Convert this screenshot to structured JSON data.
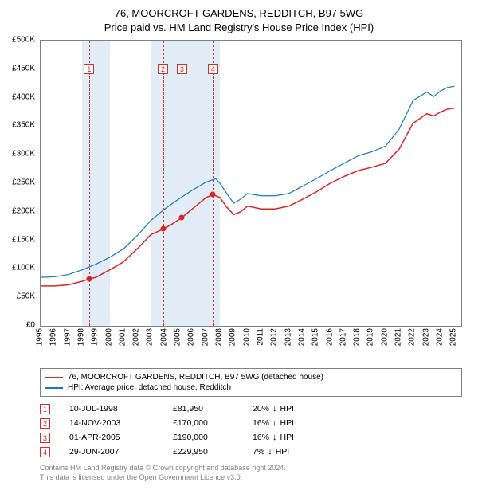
{
  "title_line1": "76, MOORCROFT GARDENS, REDDITCH, B97 5WG",
  "title_line2": "Price paid vs. HM Land Registry's House Price Index (HPI)",
  "chart": {
    "type": "line",
    "background_color": "#ffffff",
    "shade_color": "#e2ecf6",
    "vline_color": "#d03030",
    "border_color": "#808080",
    "x_year_min": 1995,
    "x_year_max": 2025.5,
    "y_min": 0,
    "y_max": 500000,
    "y_ticks": [
      0,
      50000,
      100000,
      150000,
      200000,
      250000,
      300000,
      350000,
      400000,
      450000,
      500000
    ],
    "y_tick_labels": [
      "£0",
      "£50K",
      "£100K",
      "£150K",
      "£200K",
      "£250K",
      "£300K",
      "£350K",
      "£400K",
      "£450K",
      "£500K"
    ],
    "x_ticks": [
      1995,
      1996,
      1997,
      1998,
      1999,
      2000,
      2001,
      2002,
      2003,
      2004,
      2005,
      2006,
      2007,
      2008,
      2009,
      2010,
      2011,
      2012,
      2013,
      2014,
      2015,
      2016,
      2017,
      2018,
      2019,
      2020,
      2021,
      2022,
      2023,
      2024,
      2025
    ],
    "shaded_years": [
      1998,
      1999,
      2003,
      2004,
      2005,
      2006,
      2007
    ],
    "label_fontsize": 10,
    "series": [
      {
        "name": "subject",
        "label": "76, MOORCROFT GARDENS, REDDITCH, B97 5WG (detached house)",
        "color": "#d62728",
        "width": 1.5,
        "points": [
          [
            1995.0,
            70000
          ],
          [
            1996.0,
            70000
          ],
          [
            1997.0,
            72000
          ],
          [
            1998.0,
            78000
          ],
          [
            1998.5,
            81950
          ],
          [
            1999.0,
            85000
          ],
          [
            2000.0,
            98000
          ],
          [
            2001.0,
            112000
          ],
          [
            2002.0,
            135000
          ],
          [
            2003.0,
            160000
          ],
          [
            2003.9,
            170000
          ],
          [
            2004.5,
            178000
          ],
          [
            2005.25,
            190000
          ],
          [
            2006.0,
            205000
          ],
          [
            2007.0,
            225000
          ],
          [
            2007.5,
            229950
          ],
          [
            2008.0,
            225000
          ],
          [
            2008.5,
            208000
          ],
          [
            2009.0,
            195000
          ],
          [
            2009.5,
            200000
          ],
          [
            2010.0,
            210000
          ],
          [
            2011.0,
            205000
          ],
          [
            2012.0,
            205000
          ],
          [
            2013.0,
            210000
          ],
          [
            2014.0,
            222000
          ],
          [
            2015.0,
            235000
          ],
          [
            2016.0,
            250000
          ],
          [
            2017.0,
            262000
          ],
          [
            2018.0,
            272000
          ],
          [
            2019.0,
            278000
          ],
          [
            2020.0,
            285000
          ],
          [
            2021.0,
            310000
          ],
          [
            2022.0,
            355000
          ],
          [
            2023.0,
            372000
          ],
          [
            2023.5,
            368000
          ],
          [
            2024.0,
            375000
          ],
          [
            2024.5,
            380000
          ],
          [
            2025.0,
            382000
          ]
        ]
      },
      {
        "name": "hpi",
        "label": "HPI: Average price, detached house, Redditch",
        "color": "#1f77b4",
        "width": 1.2,
        "points": [
          [
            1995.0,
            85000
          ],
          [
            1996.0,
            86000
          ],
          [
            1997.0,
            90000
          ],
          [
            1998.0,
            98000
          ],
          [
            1999.0,
            108000
          ],
          [
            2000.0,
            120000
          ],
          [
            2001.0,
            135000
          ],
          [
            2002.0,
            158000
          ],
          [
            2003.0,
            185000
          ],
          [
            2004.0,
            205000
          ],
          [
            2005.0,
            222000
          ],
          [
            2006.0,
            238000
          ],
          [
            2007.0,
            252000
          ],
          [
            2007.7,
            258000
          ],
          [
            2008.0,
            250000
          ],
          [
            2008.7,
            225000
          ],
          [
            2009.0,
            215000
          ],
          [
            2009.5,
            222000
          ],
          [
            2010.0,
            232000
          ],
          [
            2011.0,
            228000
          ],
          [
            2012.0,
            228000
          ],
          [
            2013.0,
            232000
          ],
          [
            2014.0,
            245000
          ],
          [
            2015.0,
            258000
          ],
          [
            2016.0,
            272000
          ],
          [
            2017.0,
            285000
          ],
          [
            2018.0,
            298000
          ],
          [
            2019.0,
            305000
          ],
          [
            2020.0,
            315000
          ],
          [
            2021.0,
            345000
          ],
          [
            2022.0,
            395000
          ],
          [
            2023.0,
            410000
          ],
          [
            2023.5,
            402000
          ],
          [
            2024.0,
            412000
          ],
          [
            2024.5,
            418000
          ],
          [
            2025.0,
            420000
          ]
        ]
      }
    ],
    "sale_markers": [
      {
        "n": "1",
        "year": 1998.52,
        "price": 81950
      },
      {
        "n": "2",
        "year": 2003.87,
        "price": 170000
      },
      {
        "n": "3",
        "year": 2005.25,
        "price": 190000
      },
      {
        "n": "4",
        "year": 2007.49,
        "price": 229950
      }
    ]
  },
  "legend": {
    "items": [
      {
        "color": "#d62728",
        "label": "76, MOORCROFT GARDENS, REDDITCH, B97 5WG (detached house)"
      },
      {
        "color": "#1f77b4",
        "label": "HPI: Average price, detached house, Redditch"
      }
    ]
  },
  "sales_table": [
    {
      "n": "1",
      "date": "10-JUL-1998",
      "price": "£81,950",
      "diff": "20%",
      "rel": "HPI"
    },
    {
      "n": "2",
      "date": "14-NOV-2003",
      "price": "£170,000",
      "diff": "16%",
      "rel": "HPI"
    },
    {
      "n": "3",
      "date": "01-APR-2005",
      "price": "£190,000",
      "diff": "16%",
      "rel": "HPI"
    },
    {
      "n": "4",
      "date": "29-JUN-2007",
      "price": "£229,950",
      "diff": "7%",
      "rel": "HPI"
    }
  ],
  "footnote_line1": "Contains HM Land Registry data © Crown copyright and database right 2024.",
  "footnote_line2": "This data is licensed under the Open Government Licence v3.0.",
  "arrow_glyph": "↓"
}
